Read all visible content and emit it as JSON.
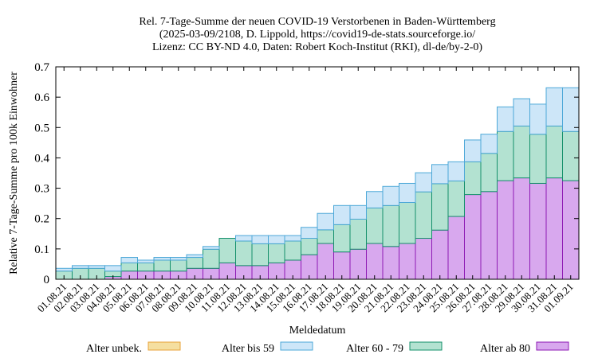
{
  "chart_data": {
    "type": "bar",
    "title_lines": [
      "Rel. 7-Tage-Summe der neuen COVID-19 Verstorbenen in Baden-Württemberg",
      "(2025-03-09/2108, D. Lippold, https://covid19-de-stats.sourceforge.io/",
      "Lizenz: CC BY-ND 4.0, Daten: Robert Koch-Institut (RKI), dl-de/by-2-0)"
    ],
    "xlabel": "Meldedatum",
    "ylabel": "Relative 7-Tage-Summe pro 100k Einwohner",
    "ylim": [
      0,
      0.7
    ],
    "yticks": [
      "0",
      "0.1",
      "0.2",
      "0.3",
      "0.4",
      "0.5",
      "0.6",
      "0.7"
    ],
    "stacked": true,
    "categories": [
      "01.08.21",
      "02.08.21",
      "03.08.21",
      "04.08.21",
      "05.08.21",
      "06.08.21",
      "07.08.21",
      "08.08.21",
      "09.08.21",
      "10.08.21",
      "11.08.21",
      "12.08.21",
      "13.08.21",
      "14.08.21",
      "15.08.21",
      "16.08.21",
      "17.08.21",
      "18.08.21",
      "19.08.21",
      "20.08.21",
      "21.08.21",
      "22.08.21",
      "23.08.21",
      "24.08.21",
      "25.08.21",
      "26.08.21",
      "27.08.21",
      "28.08.21",
      "29.08.21",
      "30.08.21",
      "31.08.21",
      "01.09.21"
    ],
    "series": [
      {
        "name": "Alter unbek.",
        "color": "#f5dfa0",
        "stroke": "#e8a33a",
        "values": [
          0,
          0,
          0,
          0,
          0,
          0,
          0,
          0,
          0,
          0,
          0,
          0,
          0,
          0,
          0,
          0,
          0,
          0,
          0,
          0,
          0,
          0,
          0,
          0,
          0,
          0,
          0,
          0,
          0,
          0,
          0,
          0
        ]
      },
      {
        "name": "Alter ab 80",
        "color": "#d8a8ee",
        "stroke": "#8e1ab4",
        "values": [
          0,
          0,
          0,
          0.009,
          0.027,
          0.027,
          0.027,
          0.027,
          0.036,
          0.036,
          0.054,
          0.045,
          0.045,
          0.054,
          0.063,
          0.081,
          0.118,
          0.09,
          0.099,
          0.118,
          0.108,
          0.118,
          0.135,
          0.162,
          0.207,
          0.279,
          0.289,
          0.325,
          0.334,
          0.316,
          0.334,
          0.325
        ]
      },
      {
        "name": "Alter 60 - 79",
        "color": "#b3e2d1",
        "stroke": "#14906b",
        "values": [
          0.027,
          0.036,
          0.036,
          0.018,
          0.027,
          0.027,
          0.036,
          0.036,
          0.036,
          0.063,
          0.081,
          0.081,
          0.072,
          0.063,
          0.063,
          0.054,
          0.045,
          0.09,
          0.099,
          0.117,
          0.135,
          0.135,
          0.153,
          0.153,
          0.117,
          0.108,
          0.126,
          0.162,
          0.171,
          0.162,
          0.171,
          0.162
        ]
      },
      {
        "name": "Alter bis 59",
        "color": "#cde6f8",
        "stroke": "#4da8d8",
        "values": [
          0.009,
          0.009,
          0.009,
          0.018,
          0.018,
          0.009,
          0.009,
          0.009,
          0.009,
          0.009,
          0,
          0.018,
          0.027,
          0.027,
          0.018,
          0.036,
          0.054,
          0.063,
          0.045,
          0.054,
          0.063,
          0.063,
          0.063,
          0.063,
          0.063,
          0.072,
          0.063,
          0.081,
          0.09,
          0.099,
          0.126,
          0.144
        ]
      }
    ],
    "legend_order": [
      "Alter unbek.",
      "Alter bis 59",
      "Alter 60 - 79",
      "Alter ab 80"
    ],
    "grid": false,
    "legend_position": "bottom"
  }
}
